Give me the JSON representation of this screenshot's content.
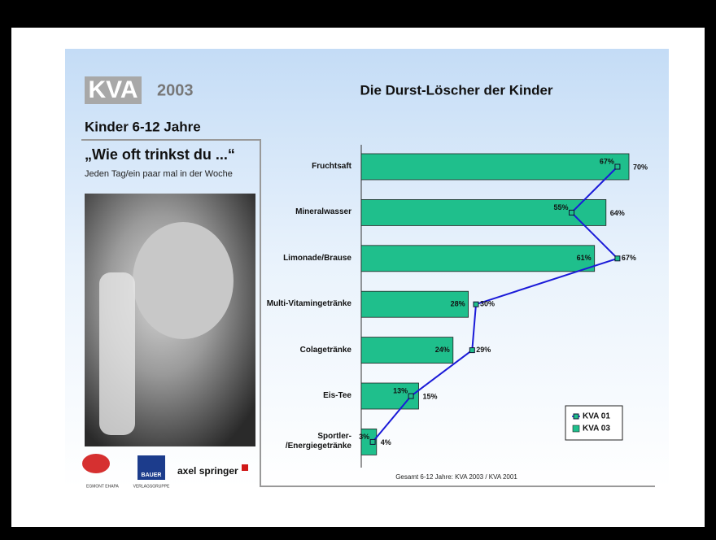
{
  "header": {
    "logo": "KVA",
    "year": "2003",
    "subtitle": "Kinder 6-12 Jahre"
  },
  "left": {
    "question": "„Wie oft trinkst du ...“",
    "note": "Jeden Tag/ein paar mal in der Woche"
  },
  "logos": [
    "EGMONT EHAPA",
    "BAUER",
    "VERLAGSGRUPPE",
    "axel springer"
  ],
  "chart_data": {
    "type": "bar",
    "orientation": "horizontal",
    "title": "Die Durst-Löscher der Kinder",
    "note": "Gesamt 6-12 Jahre: KVA 2003 / KVA 2001",
    "categories": [
      "Fruchtsaft",
      "Mineralwasser",
      "Limonade/Brause",
      "Multi-Vitamingetränke",
      "Colagetränke",
      "Eis-Tee",
      "Sportler-\n/Energiegetränke"
    ],
    "series": [
      {
        "name": "KVA 01",
        "type": "line",
        "color": "#1a1ad8",
        "values": [
          67,
          55,
          67,
          30,
          29,
          13,
          3
        ],
        "value_labels": [
          "67%",
          "55%",
          "67%",
          "30%",
          "29%",
          "13%",
          "3%"
        ]
      },
      {
        "name": "KVA 03",
        "type": "bar",
        "color": "#1fbf8c",
        "values": [
          70,
          64,
          61,
          28,
          24,
          15,
          4
        ],
        "value_labels": [
          "70%",
          "64%",
          "61%",
          "28%",
          "24%",
          "15%",
          "4%"
        ]
      }
    ],
    "legend": "lower right"
  }
}
